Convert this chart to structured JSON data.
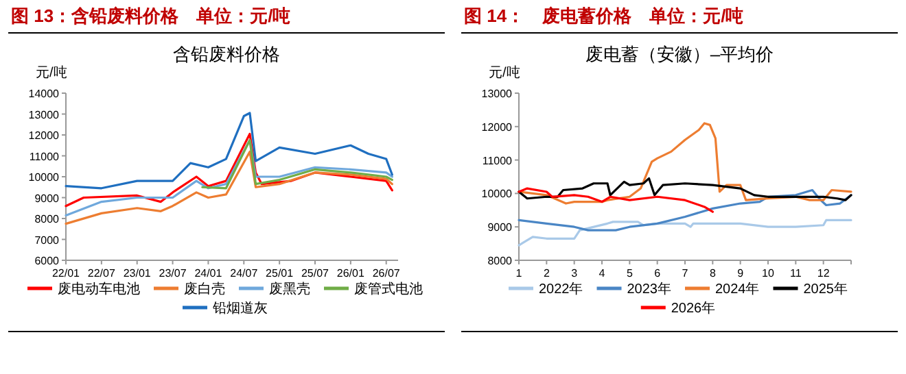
{
  "chart_data": [
    {
      "type": "line",
      "title": "图 13：含铅废料价格　单位：元/吨",
      "subtitle": "含铅废料价格",
      "ylabel": "元/吨",
      "legend": "bottom",
      "xlim": [
        "2022-01",
        "2026-09"
      ],
      "xticks": [
        {
          "value": "2022-01",
          "label": "22/01"
        },
        {
          "value": "2022-07",
          "label": "22/07"
        },
        {
          "value": "2023-01",
          "label": "23/01"
        },
        {
          "value": "2023-07",
          "label": "23/07"
        },
        {
          "value": "2024-01",
          "label": "24/01"
        },
        {
          "value": "2024-07",
          "label": "24/07"
        },
        {
          "value": "2025-01",
          "label": "25/01"
        },
        {
          "value": "2025-07",
          "label": "25/07"
        },
        {
          "value": "2026-01",
          "label": "26/01"
        },
        {
          "value": "2026-07",
          "label": "26/07"
        }
      ],
      "ylim": [
        6000,
        14000
      ],
      "yticks": [
        6000,
        7000,
        8000,
        9000,
        10000,
        11000,
        12000,
        13000,
        14000
      ],
      "series": [
        {
          "name": "废电动车电池",
          "color": "#ff0000",
          "x": [
            "2022-01",
            "2022-04",
            "2023-01",
            "2023-05",
            "2023-07",
            "2023-11",
            "2024-01",
            "2024-04",
            "2024-08",
            "2024-09",
            "2024-10",
            "2025-03",
            "2025-07",
            "2026-01",
            "2026-07",
            "2026-08"
          ],
          "values": [
            8600,
            9000,
            9100,
            8800,
            9250,
            10000,
            9550,
            9800,
            12050,
            10200,
            9650,
            9800,
            10200,
            10000,
            9800,
            9350
          ]
        },
        {
          "name": "废白壳",
          "color": "#ed7d31",
          "x": [
            "2022-01",
            "2022-07",
            "2023-01",
            "2023-05",
            "2023-07",
            "2023-11",
            "2024-01",
            "2024-04",
            "2024-08",
            "2024-09",
            "2025-01",
            "2025-07",
            "2026-01",
            "2026-07",
            "2026-08"
          ],
          "values": [
            7750,
            8250,
            8500,
            8350,
            8600,
            9250,
            9000,
            9150,
            11200,
            9500,
            9650,
            10200,
            10100,
            9900,
            9650
          ]
        },
        {
          "name": "废黑壳",
          "color": "#6fa8dc",
          "x": [
            "2022-01",
            "2022-07",
            "2023-01",
            "2023-07",
            "2023-11",
            "2024-01",
            "2024-04",
            "2024-08",
            "2024-09",
            "2025-01",
            "2025-07",
            "2026-01",
            "2026-07",
            "2026-08"
          ],
          "values": [
            8150,
            8800,
            9000,
            9000,
            9800,
            9450,
            9650,
            11750,
            10000,
            10000,
            10450,
            10350,
            10200,
            10000
          ]
        },
        {
          "name": "废管式电池",
          "color": "#70ad47",
          "x": [
            "2023-12",
            "2024-04",
            "2024-08",
            "2024-09",
            "2025-01",
            "2025-07",
            "2026-01",
            "2026-07",
            "2026-08"
          ],
          "values": [
            9500,
            9450,
            11750,
            9650,
            9850,
            10350,
            10200,
            10000,
            9850
          ]
        },
        {
          "name": "铅烟道灰",
          "color": "#1f6fc0",
          "x": [
            "2022-01",
            "2022-07",
            "2023-01",
            "2023-07",
            "2023-10",
            "2024-01",
            "2024-04",
            "2024-07",
            "2024-08",
            "2024-09",
            "2025-01",
            "2025-07",
            "2026-01",
            "2026-04",
            "2026-07",
            "2026-08"
          ],
          "values": [
            9550,
            9450,
            9800,
            9800,
            10650,
            10450,
            10850,
            12900,
            13050,
            10750,
            11400,
            11100,
            11500,
            11100,
            10850,
            10100
          ]
        }
      ]
    },
    {
      "type": "line",
      "title": "图 14：　废电蓄价格　单位：元/吨",
      "subtitle": "废电蓄（安徽）–平均价",
      "ylabel": "元/吨",
      "legend": "bottom",
      "xlim": [
        1,
        13
      ],
      "xticks": [
        1,
        2,
        3,
        4,
        5,
        6,
        7,
        8,
        9,
        10,
        11,
        12,
        {
          "value": 13,
          "label": null
        }
      ],
      "ylim": [
        8000,
        13000
      ],
      "yticks": [
        8000,
        9000,
        10000,
        11000,
        12000,
        13000
      ],
      "series": [
        {
          "name": "2022年",
          "color": "#a9c9e8",
          "x": [
            1,
            1.5,
            2,
            3,
            3.2,
            4.2,
            4.4,
            5.3,
            5.5,
            6,
            7,
            7.2,
            7.3,
            8,
            9,
            10,
            11,
            12,
            12.1,
            13
          ],
          "values": [
            8450,
            8700,
            8650,
            8650,
            8900,
            9100,
            9150,
            9150,
            9050,
            9100,
            9100,
            9000,
            9100,
            9100,
            9100,
            9000,
            9000,
            9050,
            9200,
            9200
          ]
        },
        {
          "name": "2023年",
          "color": "#4a86c5",
          "x": [
            1,
            2,
            3,
            3.5,
            4.5,
            5,
            6,
            7,
            8,
            9,
            9.7,
            10,
            11,
            11.6,
            11.9,
            12.1,
            12.6,
            13
          ],
          "values": [
            9200,
            9100,
            9000,
            8900,
            8900,
            9000,
            9100,
            9300,
            9550,
            9700,
            9750,
            9900,
            9950,
            10100,
            9800,
            9650,
            9700,
            9950
          ]
        },
        {
          "name": "2024年",
          "color": "#ed7d31",
          "x": [
            1,
            2,
            2.7,
            3,
            4,
            4.2,
            5,
            5.4,
            5.8,
            6,
            6.5,
            7,
            7.5,
            7.7,
            7.9,
            8.1,
            8.25,
            8.5,
            9,
            9.2,
            10,
            11,
            11.5,
            12,
            12.3,
            13
          ],
          "values": [
            10050,
            9950,
            9700,
            9750,
            9750,
            9800,
            9900,
            10150,
            10950,
            11050,
            11250,
            11600,
            11900,
            12100,
            12050,
            11650,
            10050,
            10250,
            10250,
            9800,
            9850,
            9900,
            9800,
            9800,
            10100,
            10050
          ]
        },
        {
          "name": "2025年",
          "color": "#000000",
          "x": [
            1,
            1.3,
            2,
            2.4,
            2.6,
            3.3,
            3.7,
            4.2,
            4.3,
            4.8,
            5,
            5.5,
            5.7,
            5.9,
            6.2,
            7,
            8,
            9,
            9.5,
            10,
            12,
            12.5,
            12.8,
            13
          ],
          "values": [
            10050,
            9850,
            9900,
            9900,
            10100,
            10150,
            10300,
            10300,
            9950,
            10350,
            10250,
            10300,
            10450,
            9950,
            10250,
            10300,
            10250,
            10150,
            9950,
            9900,
            9900,
            9850,
            9800,
            9950
          ]
        },
        {
          "name": "2026年",
          "color": "#ff0000",
          "x": [
            1,
            1.3,
            2,
            2.2,
            3,
            3.5,
            4,
            4.3,
            5,
            6,
            7,
            7.7,
            8
          ],
          "values": [
            10050,
            10150,
            10050,
            9900,
            9950,
            9900,
            9750,
            9900,
            9800,
            9900,
            9800,
            9600,
            9450
          ]
        }
      ]
    }
  ]
}
